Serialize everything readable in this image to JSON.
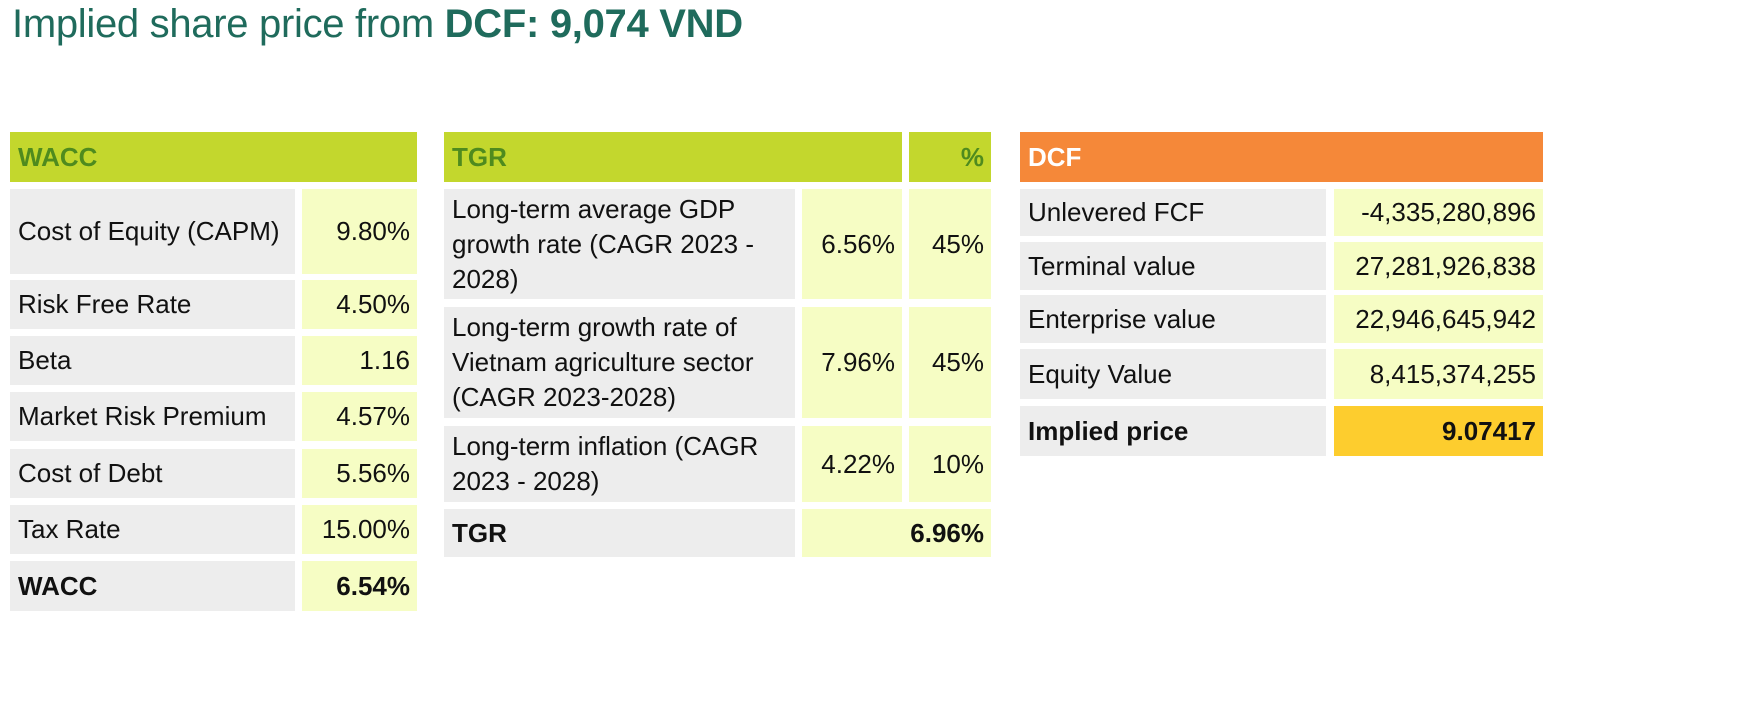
{
  "title": {
    "prefix": "Implied share price from ",
    "emphasis": "DCF: 9,074 VND"
  },
  "wacc": {
    "header": "WACC",
    "rows": [
      {
        "label": "Cost of Equity (CAPM)",
        "value": "9.80%"
      },
      {
        "label": "Risk Free Rate",
        "value": "4.50%"
      },
      {
        "label": "Beta",
        "value": "1.16"
      },
      {
        "label": "Market Risk Premium",
        "value": "4.57%"
      },
      {
        "label": "Cost of Debt",
        "value": "5.56%"
      },
      {
        "label": "Tax Rate",
        "value": "15.00%"
      }
    ],
    "total": {
      "label": "WACC",
      "value": "6.54%"
    }
  },
  "tgr": {
    "header": "TGR",
    "weight_header": "%",
    "rows": [
      {
        "label": "Long-term average GDP growth rate (CAGR 2023 - 2028)",
        "value": "6.56%",
        "weight": "45%"
      },
      {
        "label": "Long-term growth rate of Vietnam agriculture sector (CAGR 2023-2028)",
        "value": "7.96%",
        "weight": "45%"
      },
      {
        "label": "Long-term inflation (CAGR 2023 - 2028)",
        "value": "4.22%",
        "weight": "10%"
      }
    ],
    "total": {
      "label": "TGR",
      "value": "6.96%"
    }
  },
  "dcf": {
    "header": "DCF",
    "rows": [
      {
        "label": "Unlevered FCF",
        "value": "-4,335,280,896"
      },
      {
        "label": "Terminal value",
        "value": "27,281,926,838"
      },
      {
        "label": "Enterprise value",
        "value": "22,946,645,942"
      },
      {
        "label": "Equity Value",
        "value": "8,415,374,255"
      }
    ],
    "total": {
      "label": "Implied price",
      "value": "9.07417"
    }
  },
  "colors": {
    "title": "#1f6b5c",
    "header_green": "#c3d72d",
    "header_green_text": "#4f8b1e",
    "header_orange": "#f58839",
    "label_bg": "#ededed",
    "value_bg": "#f6fdc4",
    "highlight": "#fdcd2e"
  }
}
